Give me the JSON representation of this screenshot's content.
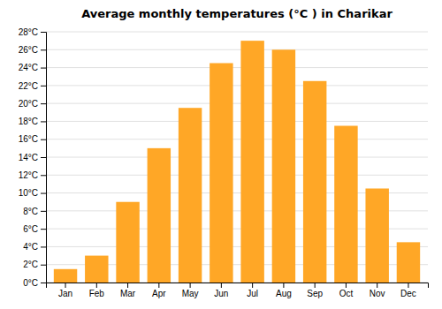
{
  "chart_data": {
    "type": "bar",
    "title": "Average monthly temperatures (°C ) in Charikar",
    "categories": [
      "Jan",
      "Feb",
      "Mar",
      "Apr",
      "May",
      "Jun",
      "Jul",
      "Aug",
      "Sep",
      "Oct",
      "Nov",
      "Dec"
    ],
    "values": [
      1.5,
      3.0,
      9.0,
      15.0,
      19.5,
      24.5,
      27.0,
      26.0,
      22.5,
      17.5,
      10.5,
      4.5
    ],
    "color": "#FFA726",
    "ylim": [
      0,
      28
    ],
    "yticks": [
      {
        "value": 0,
        "label": "0°C"
      },
      {
        "value": 2,
        "label": "2°C"
      },
      {
        "value": 4,
        "label": "4°C"
      },
      {
        "value": 6,
        "label": "6°C"
      },
      {
        "value": 8,
        "label": "8°C"
      },
      {
        "value": 10,
        "label": "10°C"
      },
      {
        "value": 12,
        "label": "12°C"
      },
      {
        "value": 14,
        "label": "14°C"
      },
      {
        "value": 16,
        "label": "16°C"
      },
      {
        "value": 18,
        "label": "18°C"
      },
      {
        "value": 20,
        "label": "20°C"
      },
      {
        "value": 22,
        "label": "22°C"
      },
      {
        "value": 24,
        "label": "24°C"
      },
      {
        "value": 26,
        "label": "26°C"
      },
      {
        "value": 28,
        "label": "28°C"
      }
    ],
    "grid": true
  }
}
